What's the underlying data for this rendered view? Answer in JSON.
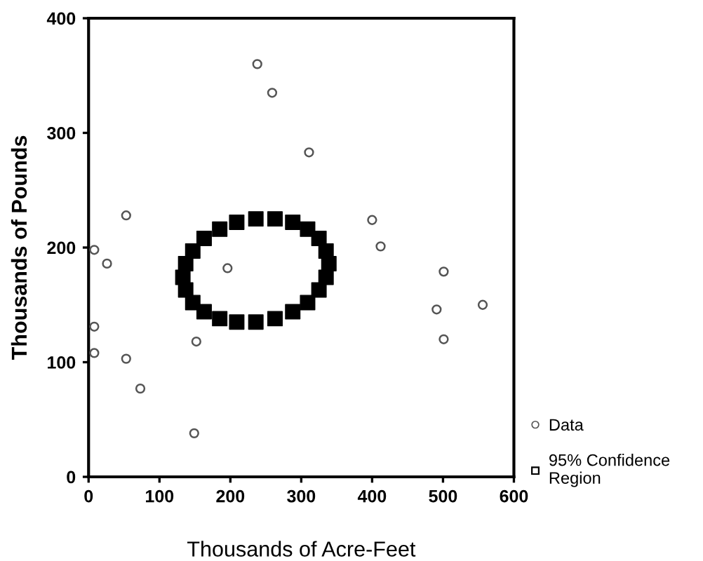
{
  "chart_data": {
    "type": "scatter",
    "xlabel": "Thousands of Acre-Feet",
    "ylabel": "Thousands of Pounds",
    "xlim": [
      0,
      600
    ],
    "ylim": [
      0,
      400
    ],
    "xticks": [
      0,
      100,
      200,
      300,
      400,
      500,
      600
    ],
    "yticks": [
      0,
      100,
      200,
      300,
      400
    ],
    "grid": false,
    "legend": "bottom right",
    "series": [
      {
        "name": "Data",
        "color": "#555555",
        "marker": "circle",
        "x": [
          238,
          259,
          311,
          53,
          400,
          412,
          8,
          26,
          196,
          501,
          491,
          556,
          501,
          8,
          8,
          53,
          73,
          152,
          149
        ],
        "values": [
          360,
          335,
          283,
          228,
          224,
          201,
          198,
          186,
          182,
          179,
          146,
          150,
          120,
          131,
          108,
          103,
          77,
          118,
          38
        ]
      },
      {
        "name": "95% Confidence Region",
        "color": "#000000",
        "marker": "square",
        "x": [
          339,
          335,
          325,
          309,
          288,
          263,
          236,
          209,
          185,
          163,
          147,
          137,
          133,
          137,
          147,
          163,
          185,
          209,
          236,
          263,
          288,
          309,
          325,
          335
        ],
        "values": [
          186,
          197,
          208,
          216,
          222,
          225,
          225,
          222,
          216,
          208,
          197,
          186,
          174,
          163,
          152,
          144,
          138,
          135,
          135,
          138,
          144,
          152,
          163,
          174
        ]
      }
    ]
  }
}
